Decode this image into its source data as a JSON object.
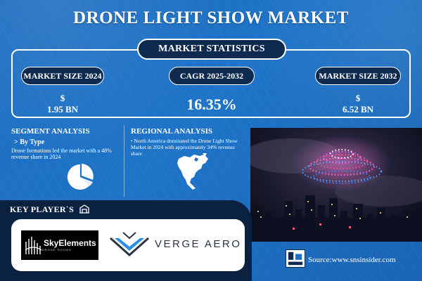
{
  "header": {
    "title": "DRONE LIGHT SHOW MARKET"
  },
  "stats": {
    "heading": "MARKET STATISTICS",
    "market_size_2024": {
      "label": "MARKET SIZE 2024",
      "currency": "$",
      "value": "1.95 BN"
    },
    "cagr": {
      "label": "CAGR 2025-2032",
      "value": "16.35%"
    },
    "market_size_2032": {
      "label": "MARKET SIZE 2032",
      "currency": "$",
      "value": "6.52 BN"
    }
  },
  "segment": {
    "title": "SEGMENT ANALYSIS",
    "subtitle": "> By Type",
    "text": "Drone formations led the market with a 48% revenue share in 2024"
  },
  "regional": {
    "title": "REGIONAL ANALYSIS",
    "text": "• North America dominated the Drone Light Show Market in 2024 with approximately 34% revenue share"
  },
  "players": {
    "title": "KEY PLAYER`S",
    "logos": [
      {
        "name": "SkyElements",
        "tagline": "DRONE SHOWS"
      },
      {
        "name": "VERGE AERO"
      }
    ]
  },
  "footer": {
    "source": "Source:www.snsinsider.com"
  },
  "colors": {
    "background": "#1f6fc4",
    "navy": "#0e2a4e",
    "panel": "#0b2140",
    "white": "#ffffff"
  },
  "icons": [
    "pie-chart-icon",
    "north-america-map-icon",
    "key-players-icon",
    "sns-insider-logo"
  ]
}
